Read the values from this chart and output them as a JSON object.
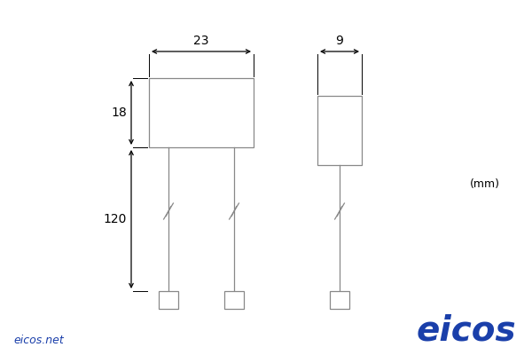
{
  "bg_color": "#ffffff",
  "line_color": "#888888",
  "dim_color": "#000000",
  "blue_color": "#1a3faa",
  "eicos_color": "#1a3faa",
  "label_23": "23",
  "label_9": "9",
  "label_18": "18",
  "label_120": "120",
  "unit_label": "(mm)",
  "website": "eicos.net",
  "brand": "eicos",
  "figsize": [
    6.0,
    4.0
  ],
  "dpi": 100
}
